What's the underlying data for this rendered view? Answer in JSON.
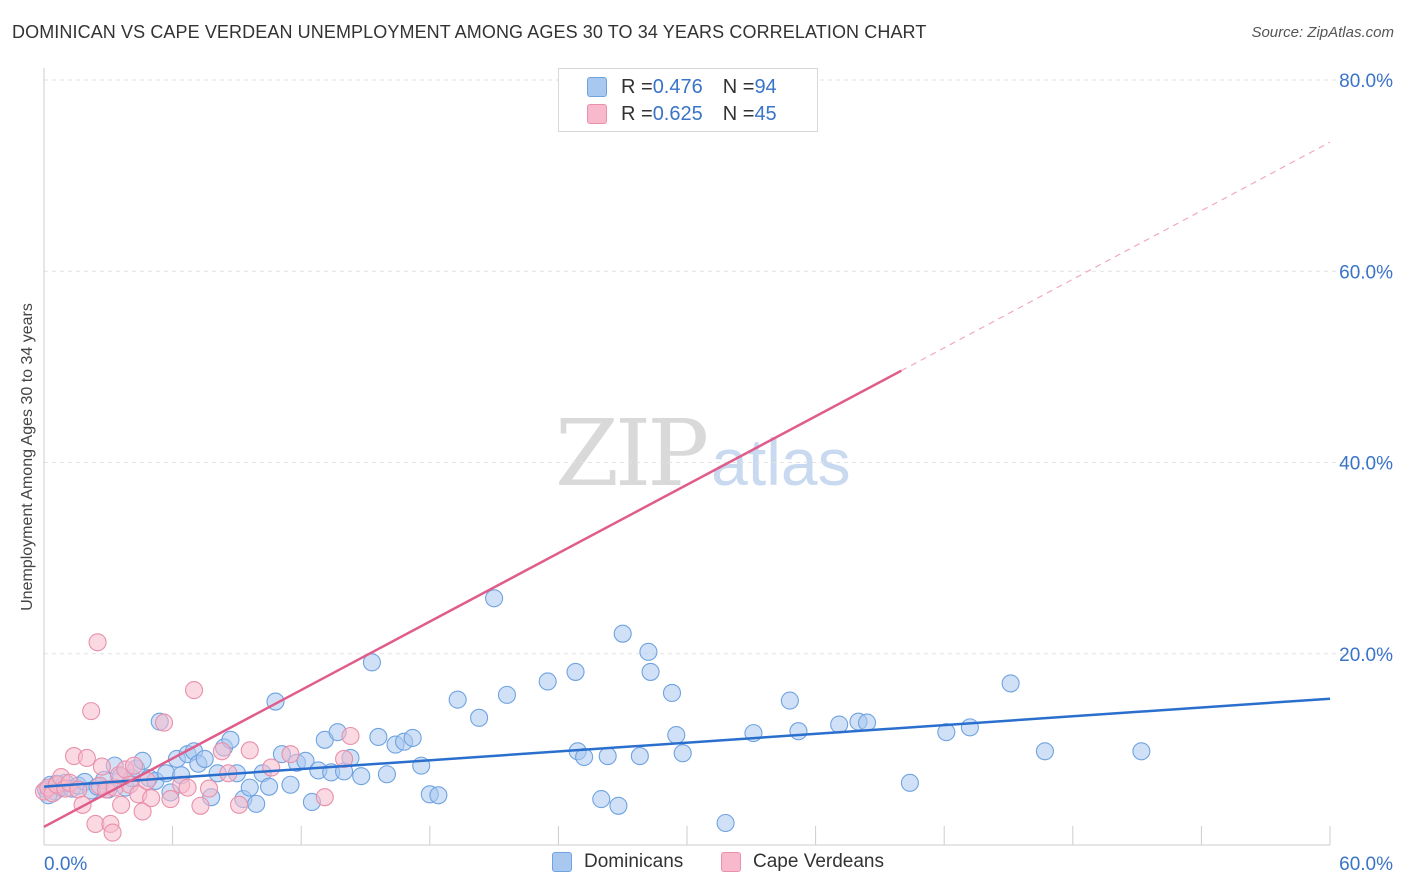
{
  "header": {
    "title": "DOMINICAN VS CAPE VERDEAN UNEMPLOYMENT AMONG AGES 30 TO 34 YEARS CORRELATION CHART",
    "source": "Source: ZipAtlas.com"
  },
  "watermark": {
    "zip": "ZIP",
    "atlas": "atlas"
  },
  "legend": {
    "rows": [
      {
        "r_label": "R = ",
        "r_value": "0.476",
        "n_label": "N = ",
        "n_value": "94",
        "color": "#a9c8f0"
      },
      {
        "r_label": "R = ",
        "r_value": "0.625",
        "n_label": "N = ",
        "n_value": "45",
        "color": "#f8b9cc"
      }
    ]
  },
  "bottom_legend": [
    {
      "label": "Dominicans",
      "color": "#a9c8f0"
    },
    {
      "label": "Cape Verdeans",
      "color": "#f8b9cc"
    }
  ],
  "chart_data": {
    "type": "scatter",
    "title": "DOMINICAN VS CAPE VERDEAN UNEMPLOYMENT AMONG AGES 30 TO 34 YEARS CORRELATION CHART",
    "xlabel": "",
    "ylabel": "Unemployment Among Ages 30 to 34 years",
    "xlim": [
      0,
      60
    ],
    "ylim": [
      0,
      80
    ],
    "x_tick_labels": [
      "0.0%",
      "60.0%"
    ],
    "y_tick_labels": [
      "20.0%",
      "40.0%",
      "60.0%",
      "80.0%"
    ],
    "y_ticks": [
      20,
      40,
      60,
      80
    ],
    "grid": true,
    "legend_position": "top-center",
    "series": [
      {
        "name": "Dominicans",
        "color": "#6fa3e0",
        "fill": "#a9c8f0",
        "trend": {
          "x": [
            0,
            60
          ],
          "y": [
            6.1,
            15.3
          ],
          "color": "#2a6fcd"
        },
        "points": [
          [
            0.1,
            5.8
          ],
          [
            0.3,
            6.3
          ],
          [
            0.5,
            5.6
          ],
          [
            0.8,
            6.0
          ],
          [
            1.0,
            6.5
          ],
          [
            1.3,
            5.9
          ],
          [
            1.6,
            6.2
          ],
          [
            1.9,
            6.6
          ],
          [
            2.2,
            5.7
          ],
          [
            2.5,
            6.1
          ],
          [
            2.8,
            6.8
          ],
          [
            3.0,
            5.8
          ],
          [
            3.3,
            8.3
          ],
          [
            3.6,
            7.2
          ],
          [
            3.8,
            6.0
          ],
          [
            4.1,
            7.0
          ],
          [
            4.3,
            8.0
          ],
          [
            4.6,
            8.8
          ],
          [
            4.9,
            7.0
          ],
          [
            5.2,
            6.7
          ],
          [
            5.4,
            12.9
          ],
          [
            5.7,
            7.5
          ],
          [
            5.9,
            5.5
          ],
          [
            6.2,
            9.0
          ],
          [
            6.4,
            7.3
          ],
          [
            6.7,
            9.5
          ],
          [
            7.0,
            9.8
          ],
          [
            7.2,
            8.5
          ],
          [
            7.5,
            9.0
          ],
          [
            7.8,
            5.0
          ],
          [
            8.1,
            7.5
          ],
          [
            8.4,
            10.2
          ],
          [
            8.7,
            11.0
          ],
          [
            9.0,
            7.5
          ],
          [
            9.3,
            4.8
          ],
          [
            9.6,
            6.0
          ],
          [
            9.9,
            4.3
          ],
          [
            10.2,
            7.5
          ],
          [
            10.5,
            6.1
          ],
          [
            10.8,
            15.0
          ],
          [
            11.1,
            9.5
          ],
          [
            11.5,
            6.3
          ],
          [
            11.8,
            8.6
          ],
          [
            12.2,
            8.8
          ],
          [
            12.5,
            4.5
          ],
          [
            12.8,
            7.8
          ],
          [
            13.1,
            11.0
          ],
          [
            13.4,
            7.6
          ],
          [
            13.7,
            11.8
          ],
          [
            14.0,
            7.7
          ],
          [
            14.3,
            9.1
          ],
          [
            14.8,
            7.2
          ],
          [
            15.3,
            19.1
          ],
          [
            15.6,
            11.3
          ],
          [
            16.0,
            7.4
          ],
          [
            16.4,
            10.5
          ],
          [
            16.8,
            10.8
          ],
          [
            17.2,
            11.2
          ],
          [
            17.6,
            8.3
          ],
          [
            18.0,
            5.3
          ],
          [
            18.4,
            5.2
          ],
          [
            19.3,
            15.2
          ],
          [
            20.3,
            13.3
          ],
          [
            21.0,
            25.8
          ],
          [
            21.6,
            15.7
          ],
          [
            23.5,
            17.1
          ],
          [
            24.8,
            18.1
          ],
          [
            24.9,
            9.8
          ],
          [
            25.2,
            9.2
          ],
          [
            26.0,
            4.8
          ],
          [
            26.3,
            9.3
          ],
          [
            26.8,
            4.1
          ],
          [
            27.0,
            22.1
          ],
          [
            27.8,
            9.3
          ],
          [
            28.2,
            20.2
          ],
          [
            28.3,
            18.1
          ],
          [
            29.3,
            15.9
          ],
          [
            29.5,
            11.5
          ],
          [
            29.8,
            9.6
          ],
          [
            31.8,
            2.3
          ],
          [
            33.1,
            11.7
          ],
          [
            34.8,
            15.1
          ],
          [
            35.2,
            11.9
          ],
          [
            37.1,
            12.6
          ],
          [
            38.0,
            12.9
          ],
          [
            38.4,
            12.8
          ],
          [
            40.4,
            6.5
          ],
          [
            42.1,
            11.8
          ],
          [
            43.2,
            12.3
          ],
          [
            45.1,
            16.9
          ],
          [
            46.7,
            9.8
          ],
          [
            51.2,
            9.8
          ],
          [
            0.2,
            5.2
          ],
          [
            0.6,
            6.4
          ]
        ]
      },
      {
        "name": "Cape Verdeans",
        "color": "#e890aa",
        "fill": "#f8b9cc",
        "trend": {
          "x": [
            0,
            40
          ],
          "y": [
            1.9,
            49.6
          ],
          "color": "#e05c8a"
        },
        "trend_extrapolated": {
          "x": [
            40,
            60
          ],
          "y": [
            49.6,
            73.5
          ]
        },
        "points": [
          [
            0.0,
            5.6
          ],
          [
            0.2,
            6.0
          ],
          [
            0.4,
            5.4
          ],
          [
            0.6,
            6.3
          ],
          [
            0.8,
            7.1
          ],
          [
            1.0,
            5.9
          ],
          [
            1.2,
            6.5
          ],
          [
            1.4,
            9.3
          ],
          [
            1.6,
            5.8
          ],
          [
            1.8,
            4.2
          ],
          [
            2.0,
            9.1
          ],
          [
            2.2,
            14.0
          ],
          [
            2.4,
            2.2
          ],
          [
            2.6,
            6.2
          ],
          [
            2.7,
            8.2
          ],
          [
            2.9,
            5.8
          ],
          [
            3.1,
            2.2
          ],
          [
            3.3,
            6.0
          ],
          [
            3.5,
            7.3
          ],
          [
            3.6,
            4.2
          ],
          [
            3.8,
            7.9
          ],
          [
            4.0,
            6.3
          ],
          [
            4.2,
            8.3
          ],
          [
            4.4,
            5.3
          ],
          [
            4.6,
            3.5
          ],
          [
            4.8,
            6.7
          ],
          [
            5.0,
            4.9
          ],
          [
            5.6,
            12.8
          ],
          [
            5.9,
            4.8
          ],
          [
            6.4,
            6.3
          ],
          [
            6.7,
            6.0
          ],
          [
            7.0,
            16.2
          ],
          [
            7.3,
            4.1
          ],
          [
            7.7,
            5.9
          ],
          [
            8.3,
            9.8
          ],
          [
            8.6,
            7.5
          ],
          [
            9.1,
            4.2
          ],
          [
            9.6,
            9.9
          ],
          [
            10.6,
            8.1
          ],
          [
            11.5,
            9.5
          ],
          [
            13.1,
            5.0
          ],
          [
            14.0,
            9.0
          ],
          [
            14.3,
            11.4
          ],
          [
            2.5,
            21.2
          ],
          [
            3.2,
            1.3
          ]
        ]
      }
    ]
  }
}
